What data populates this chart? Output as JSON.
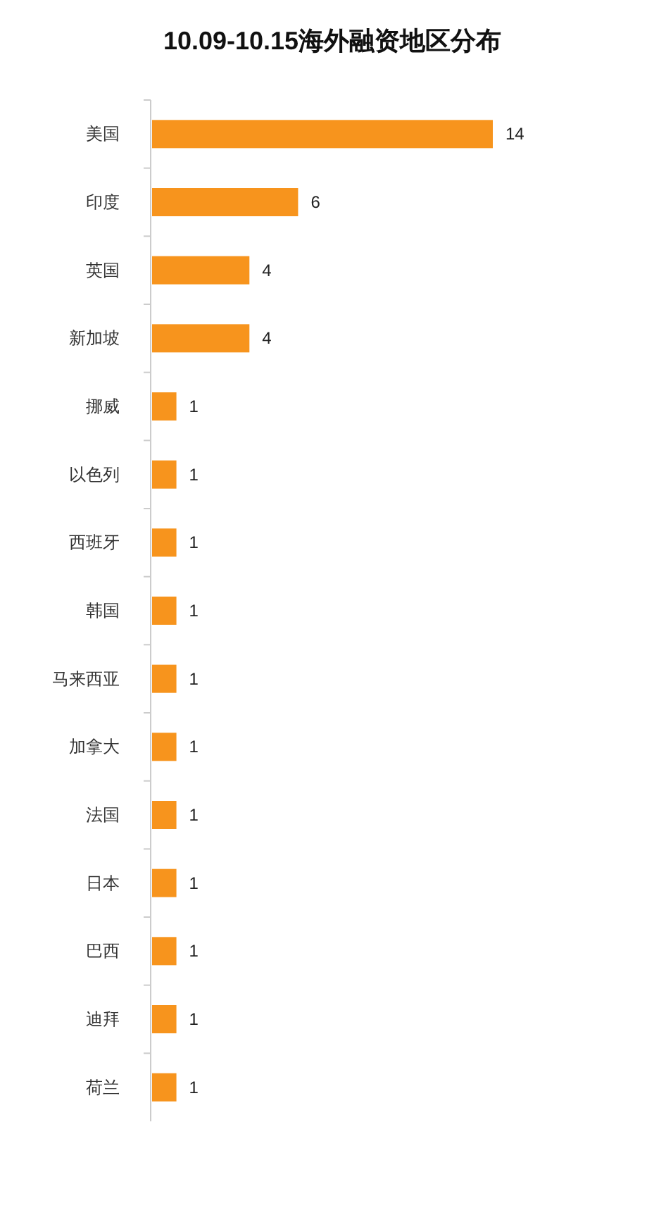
{
  "chart_data": {
    "type": "bar",
    "orientation": "horizontal",
    "title": "10.09-10.15海外融资地区分布",
    "categories": [
      "美国",
      "印度",
      "英国",
      "新加坡",
      "挪威",
      "以色列",
      "西班牙",
      "韩国",
      "马来西亚",
      "加拿大",
      "法国",
      "日本",
      "巴西",
      "迪拜",
      "荷兰"
    ],
    "values": [
      14,
      6,
      4,
      4,
      1,
      1,
      1,
      1,
      1,
      1,
      1,
      1,
      1,
      1,
      1
    ],
    "color": "#f7941d",
    "data_labels": true
  }
}
